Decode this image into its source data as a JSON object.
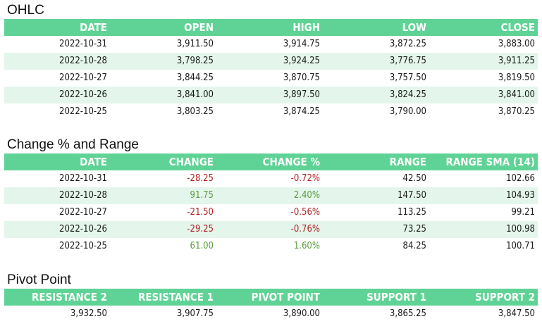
{
  "colors": {
    "header_bg": "#5fd395",
    "alt_row_bg": "#e4f6ec",
    "negative": "#b22222",
    "positive": "#5a9a3c"
  },
  "ohlc": {
    "title": "OHLC",
    "headers": [
      "DATE",
      "OPEN",
      "HIGH",
      "LOW",
      "CLOSE"
    ],
    "rows": [
      [
        "2022-10-31",
        "3,911.50",
        "3,914.75",
        "3,872.25",
        "3,883.00"
      ],
      [
        "2022-10-28",
        "3,798.25",
        "3,924.25",
        "3,776.75",
        "3,911.25"
      ],
      [
        "2022-10-27",
        "3,844.25",
        "3,870.75",
        "3,757.50",
        "3,819.50"
      ],
      [
        "2022-10-26",
        "3,841.00",
        "3,897.50",
        "3,824.25",
        "3,841.00"
      ],
      [
        "2022-10-25",
        "3,803.25",
        "3,874.25",
        "3,790.00",
        "3,870.25"
      ]
    ]
  },
  "change": {
    "title": "Change % and Range",
    "headers": [
      "DATE",
      "CHANGE",
      "CHANGE %",
      "RANGE",
      "RANGE SMA (14)"
    ],
    "rows": [
      [
        "2022-10-31",
        "-28.25",
        "-0.72%",
        "42.50",
        "102.66"
      ],
      [
        "2022-10-28",
        "91.75",
        "2.40%",
        "147.50",
        "104.93"
      ],
      [
        "2022-10-27",
        "-21.50",
        "-0.56%",
        "113.25",
        "99.21"
      ],
      [
        "2022-10-26",
        "-29.25",
        "-0.76%",
        "73.25",
        "100.98"
      ],
      [
        "2022-10-25",
        "61.00",
        "1.60%",
        "84.25",
        "100.71"
      ]
    ]
  },
  "pivot": {
    "title": "Pivot Point",
    "headers": [
      "RESISTANCE 2",
      "RESISTANCE 1",
      "PIVOT POINT",
      "SUPPORT 1",
      "SUPPORT 2"
    ],
    "rows": [
      [
        "3,932.50",
        "3,907.75",
        "3,890.00",
        "3,865.25",
        "3,847.50"
      ]
    ]
  }
}
